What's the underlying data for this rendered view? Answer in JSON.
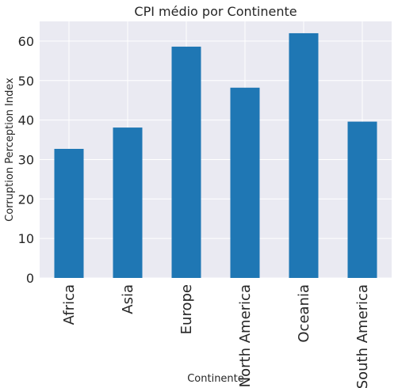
{
  "chart_data": {
    "type": "bar",
    "title": "CPI médio por Continente",
    "xlabel": "Continente",
    "ylabel": "Corruption Perception Index",
    "categories": [
      "Africa",
      "Asia",
      "Europe",
      "North America",
      "Oceania",
      "South America"
    ],
    "values": [
      32.7,
      38.1,
      58.6,
      48.2,
      62.0,
      39.6
    ],
    "ylim": [
      0,
      65
    ],
    "yticks": [
      0,
      10,
      20,
      30,
      40,
      50,
      60
    ],
    "grid": true,
    "bar_color": "#1f77b4",
    "plot_background": "#eaeaf2",
    "grid_color": "#ffffff"
  }
}
